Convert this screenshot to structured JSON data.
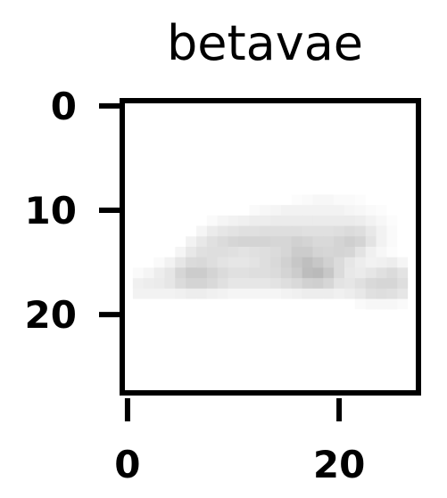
{
  "chart_data": {
    "type": "heatmap",
    "title": "betavae",
    "xlabel": "",
    "ylabel": "",
    "colormap": "gray_r",
    "x_ticks": [
      0,
      20
    ],
    "y_ticks": [
      0,
      10,
      20
    ],
    "x_tick_labels": [
      "0",
      "20"
    ],
    "y_tick_labels": [
      "0",
      "10",
      "20"
    ],
    "grid": false,
    "rows": 28,
    "cols": 28,
    "values": [
      [
        0,
        0,
        0,
        0,
        0,
        0,
        0,
        0,
        0,
        0,
        0,
        0,
        0,
        0,
        0,
        0,
        0,
        0,
        0,
        0,
        0,
        0,
        0,
        0,
        0,
        0,
        0,
        0
      ],
      [
        0,
        0,
        0,
        0,
        0,
        0,
        0,
        0,
        0,
        0,
        0,
        0,
        0,
        0,
        0,
        0,
        0,
        0,
        0,
        0,
        0,
        0,
        0,
        0,
        0,
        0,
        0,
        0
      ],
      [
        0,
        0,
        0,
        0,
        0,
        0,
        0,
        0,
        0,
        0,
        0,
        0,
        0,
        0,
        0,
        0,
        0,
        0,
        0,
        0,
        0,
        0,
        0,
        0,
        0,
        0,
        0,
        0
      ],
      [
        0,
        0,
        0,
        0,
        0,
        0,
        0,
        0,
        0,
        0,
        0,
        0,
        0,
        0,
        0,
        0,
        0,
        0,
        0,
        0,
        0,
        0,
        0,
        0,
        0,
        0,
        0,
        0
      ],
      [
        0,
        0,
        0,
        0,
        0,
        0,
        0,
        0,
        0,
        0,
        0,
        0,
        0,
        0,
        0,
        0,
        0,
        0,
        0,
        0,
        0,
        0,
        0,
        0,
        0,
        0,
        0,
        0
      ],
      [
        0,
        0,
        0,
        0,
        0,
        0,
        0,
        0,
        0,
        0,
        0,
        0,
        0,
        0,
        0,
        0,
        0,
        0,
        0,
        0,
        0,
        0,
        0,
        0,
        0,
        0,
        0,
        0
      ],
      [
        0,
        0,
        0,
        0,
        0,
        0,
        0,
        0,
        0,
        0,
        0,
        0,
        0,
        0,
        0,
        0,
        0,
        0,
        0,
        0,
        0,
        0,
        0,
        0,
        0,
        0,
        0,
        0
      ],
      [
        0,
        0,
        0,
        0,
        0,
        0,
        0,
        0,
        0,
        0,
        0,
        0,
        0,
        0,
        0,
        0,
        0,
        0,
        0,
        0,
        0,
        0,
        0,
        0,
        0,
        0,
        0,
        0
      ],
      [
        0,
        0,
        0,
        0,
        0,
        0,
        0,
        0,
        0,
        0,
        0,
        0,
        0,
        0,
        0,
        0,
        0,
        0,
        0,
        0,
        0,
        0,
        0,
        0,
        0,
        0,
        0,
        0
      ],
      [
        0,
        0,
        0,
        0,
        0,
        0,
        0,
        0,
        0,
        0,
        0,
        0,
        0,
        0,
        0,
        0,
        0.01,
        0.02,
        0.03,
        0.03,
        0.02,
        0.02,
        0.01,
        0,
        0,
        0,
        0,
        0
      ],
      [
        0,
        0,
        0,
        0,
        0,
        0,
        0,
        0,
        0,
        0,
        0,
        0,
        0.02,
        0.03,
        0.04,
        0.05,
        0.05,
        0.05,
        0.05,
        0.05,
        0.05,
        0.04,
        0.03,
        0.02,
        0.01,
        0,
        0,
        0
      ],
      [
        0,
        0,
        0,
        0,
        0,
        0,
        0,
        0,
        0.02,
        0.04,
        0.05,
        0.06,
        0.07,
        0.07,
        0.08,
        0.08,
        0.08,
        0.08,
        0.08,
        0.08,
        0.08,
        0.08,
        0.07,
        0.05,
        0.03,
        0.01,
        0,
        0
      ],
      [
        0,
        0,
        0,
        0,
        0,
        0,
        0,
        0.04,
        0.08,
        0.1,
        0.11,
        0.12,
        0.12,
        0.13,
        0.13,
        0.13,
        0.13,
        0.12,
        0.12,
        0.12,
        0.13,
        0.14,
        0.13,
        0.09,
        0.05,
        0.02,
        0,
        0
      ],
      [
        0,
        0,
        0,
        0,
        0,
        0,
        0.05,
        0.09,
        0.12,
        0.14,
        0.16,
        0.17,
        0.17,
        0.17,
        0.16,
        0.16,
        0.18,
        0.17,
        0.15,
        0.15,
        0.17,
        0.19,
        0.17,
        0.11,
        0.05,
        0.02,
        0,
        0
      ],
      [
        0,
        0,
        0,
        0,
        0,
        0.04,
        0.09,
        0.12,
        0.13,
        0.13,
        0.12,
        0.11,
        0.12,
        0.13,
        0.14,
        0.16,
        0.2,
        0.2,
        0.17,
        0.16,
        0.17,
        0.16,
        0.11,
        0.06,
        0.03,
        0.01,
        0,
        0
      ],
      [
        0,
        0,
        0,
        0.02,
        0.05,
        0.1,
        0.14,
        0.15,
        0.13,
        0.11,
        0.1,
        0.1,
        0.11,
        0.13,
        0.15,
        0.18,
        0.22,
        0.25,
        0.22,
        0.18,
        0.14,
        0.1,
        0.07,
        0.05,
        0.06,
        0.07,
        0.04,
        0
      ],
      [
        0,
        0.02,
        0.04,
        0.07,
        0.1,
        0.16,
        0.2,
        0.2,
        0.17,
        0.14,
        0.12,
        0.12,
        0.13,
        0.13,
        0.14,
        0.17,
        0.2,
        0.26,
        0.27,
        0.22,
        0.14,
        0.09,
        0.08,
        0.1,
        0.12,
        0.14,
        0.11,
        0
      ],
      [
        0,
        0.06,
        0.07,
        0.08,
        0.1,
        0.14,
        0.17,
        0.17,
        0.15,
        0.12,
        0.1,
        0.1,
        0.1,
        0.1,
        0.11,
        0.13,
        0.15,
        0.18,
        0.19,
        0.16,
        0.11,
        0.1,
        0.12,
        0.15,
        0.16,
        0.16,
        0.13,
        0
      ],
      [
        0,
        0.05,
        0.05,
        0.05,
        0.05,
        0.06,
        0.07,
        0.07,
        0.06,
        0.05,
        0.04,
        0.04,
        0.04,
        0.04,
        0.04,
        0.05,
        0.06,
        0.07,
        0.07,
        0.07,
        0.06,
        0.07,
        0.09,
        0.12,
        0.13,
        0.12,
        0.1,
        0
      ],
      [
        0,
        0,
        0,
        0,
        0,
        0,
        0,
        0,
        0,
        0,
        0,
        0,
        0,
        0,
        0,
        0,
        0,
        0,
        0,
        0,
        0,
        0,
        0.02,
        0.03,
        0.03,
        0.03,
        0.02,
        0
      ],
      [
        0,
        0,
        0,
        0,
        0,
        0,
        0,
        0,
        0,
        0,
        0,
        0,
        0,
        0,
        0,
        0,
        0,
        0,
        0,
        0,
        0,
        0,
        0,
        0,
        0,
        0,
        0,
        0
      ],
      [
        0,
        0,
        0,
        0,
        0,
        0,
        0,
        0,
        0,
        0,
        0,
        0,
        0,
        0,
        0,
        0,
        0,
        0,
        0,
        0,
        0,
        0,
        0,
        0,
        0,
        0,
        0,
        0
      ],
      [
        0,
        0,
        0,
        0,
        0,
        0,
        0,
        0,
        0,
        0,
        0,
        0,
        0,
        0,
        0,
        0,
        0,
        0,
        0,
        0,
        0,
        0,
        0,
        0,
        0,
        0,
        0,
        0
      ],
      [
        0,
        0,
        0,
        0,
        0,
        0,
        0,
        0,
        0,
        0,
        0,
        0,
        0,
        0,
        0,
        0,
        0,
        0,
        0,
        0,
        0,
        0,
        0,
        0,
        0,
        0,
        0,
        0
      ],
      [
        0,
        0,
        0,
        0,
        0,
        0,
        0,
        0,
        0,
        0,
        0,
        0,
        0,
        0,
        0,
        0,
        0,
        0,
        0,
        0,
        0,
        0,
        0,
        0,
        0,
        0,
        0,
        0
      ],
      [
        0,
        0,
        0,
        0,
        0,
        0,
        0,
        0,
        0,
        0,
        0,
        0,
        0,
        0,
        0,
        0,
        0,
        0,
        0,
        0,
        0,
        0,
        0,
        0,
        0,
        0,
        0,
        0
      ],
      [
        0,
        0,
        0,
        0,
        0,
        0,
        0,
        0,
        0,
        0,
        0,
        0,
        0,
        0,
        0,
        0,
        0,
        0,
        0,
        0,
        0,
        0,
        0,
        0,
        0,
        0,
        0,
        0
      ],
      [
        0,
        0,
        0,
        0,
        0,
        0,
        0,
        0,
        0,
        0,
        0,
        0,
        0,
        0,
        0,
        0,
        0,
        0,
        0,
        0,
        0,
        0,
        0,
        0,
        0,
        0,
        0,
        0
      ]
    ]
  }
}
